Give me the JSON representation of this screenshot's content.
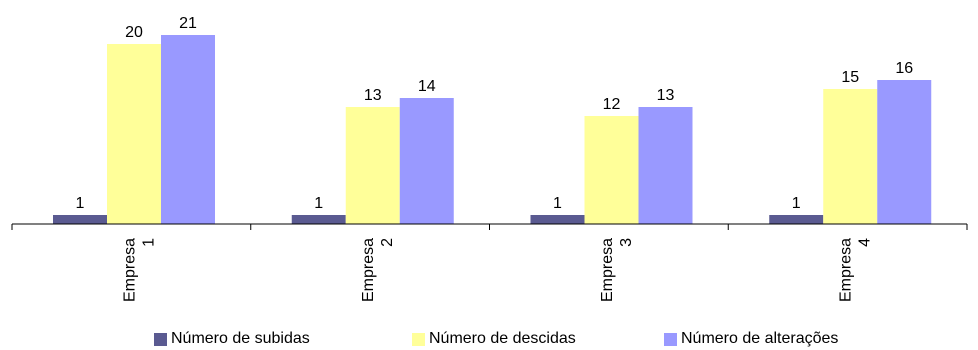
{
  "chart_data": {
    "type": "bar",
    "title": "(",
    "title_right": ")",
    "categories": [
      "Empresa 1",
      "Empresa 2",
      "Empresa 3",
      "Empresa 4"
    ],
    "category_lines": [
      [
        "Empresa",
        "1"
      ],
      [
        "Empresa",
        "2"
      ],
      [
        "Empresa",
        "3"
      ],
      [
        "Empresa",
        "4"
      ]
    ],
    "series": [
      {
        "name": "Número de subidas",
        "values": [
          1,
          1,
          1,
          1
        ],
        "color": "#5a5a91"
      },
      {
        "name": "Número de descidas",
        "values": [
          20,
          13,
          12,
          15
        ],
        "color": "#ffff99"
      },
      {
        "name": "Número de alterações",
        "values": [
          21,
          14,
          13,
          16
        ],
        "color": "#9999ff"
      }
    ],
    "ylim": [
      0,
      21
    ],
    "grid": false,
    "legend_position": "bottom",
    "data_labels": true
  }
}
